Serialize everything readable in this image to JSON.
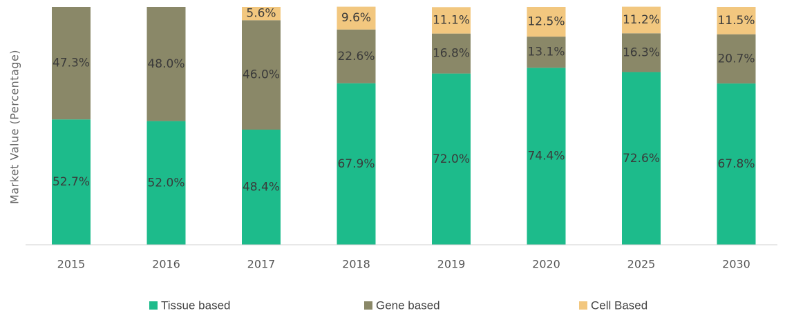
{
  "chart_data": {
    "type": "bar",
    "stacked": true,
    "title": "",
    "xlabel": "",
    "ylabel": "Market Value (Percentage)",
    "ylim": [
      0,
      100
    ],
    "grid": false,
    "legend": "bottom",
    "categories": [
      "2015",
      "2016",
      "2017",
      "2018",
      "2019",
      "2020",
      "2025",
      "2030"
    ],
    "series": [
      {
        "name": "Tissue based",
        "color": "#1dbb8b",
        "values": [
          52.7,
          52.0,
          48.4,
          67.9,
          72.0,
          74.4,
          72.6,
          67.8
        ],
        "labels": [
          "52.7%",
          "52.0%",
          "48.4%",
          "67.9%",
          "72.0%",
          "74.4%",
          "72.6%",
          "67.8%"
        ]
      },
      {
        "name": "Gene based",
        "color": "#8a8868",
        "values": [
          47.3,
          48.0,
          46.0,
          22.6,
          16.8,
          13.1,
          16.3,
          20.7
        ],
        "labels": [
          "47.3%",
          "48.0%",
          "46.0%",
          "22.6%",
          "16.8%",
          "13.1%",
          "16.3%",
          "20.7%"
        ]
      },
      {
        "name": "Cell Based",
        "color": "#f2c77f",
        "values": [
          0,
          0,
          5.6,
          9.6,
          11.1,
          12.5,
          11.2,
          11.5
        ],
        "labels": [
          "",
          "",
          "5.6%",
          "9.6%",
          "11.1%",
          "12.5%",
          "11.2%",
          "11.5%"
        ]
      }
    ]
  }
}
